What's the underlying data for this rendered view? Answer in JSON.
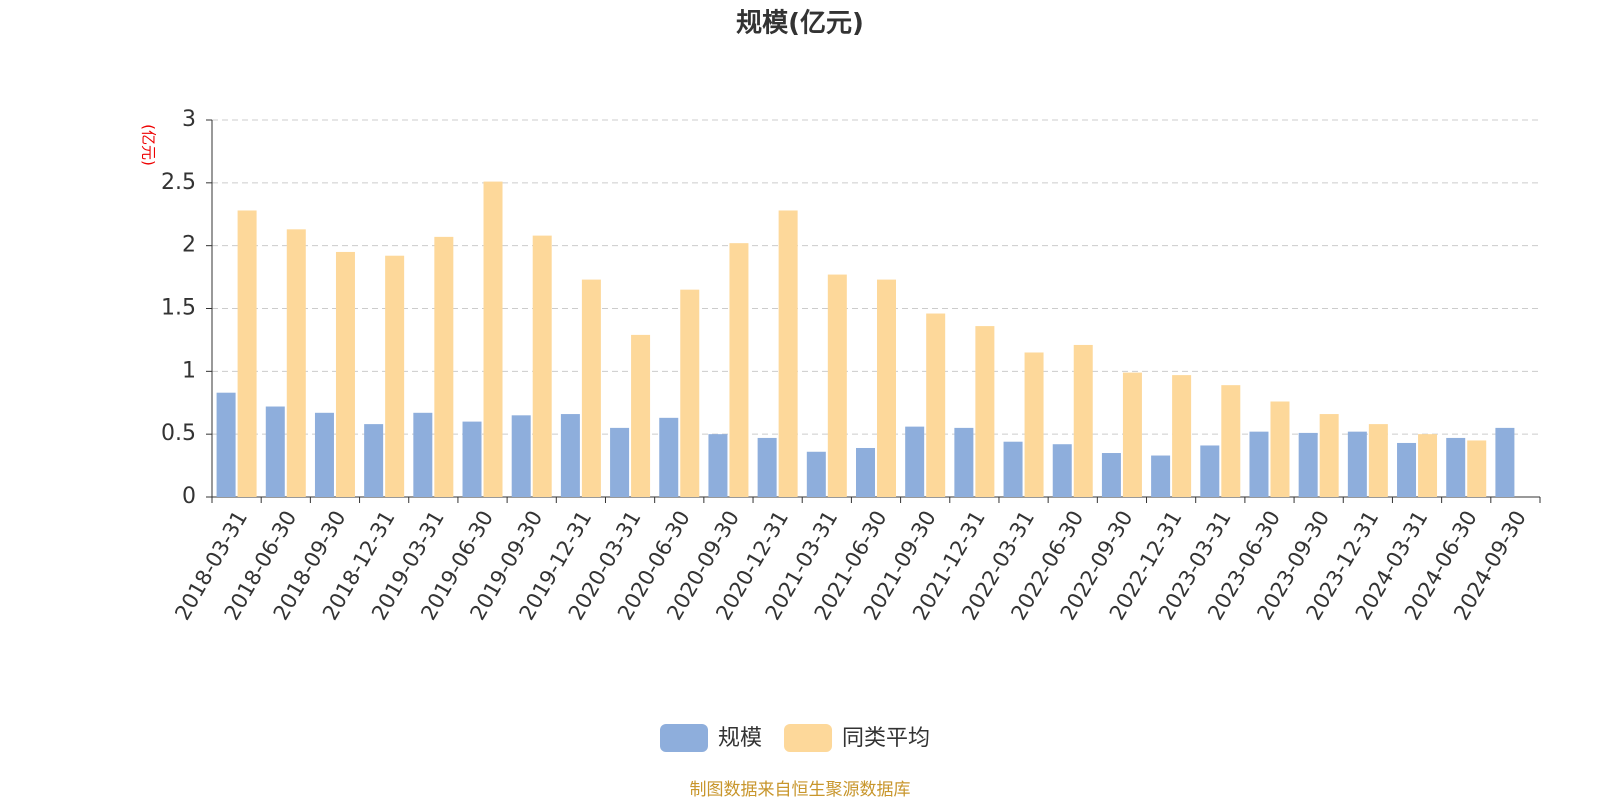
{
  "chart_data": {
    "type": "bar",
    "title": "规模(亿元)",
    "y_unit": "(亿元)",
    "categories": [
      "2018-03-31",
      "2018-06-30",
      "2018-09-30",
      "2018-12-31",
      "2019-03-31",
      "2019-06-30",
      "2019-09-30",
      "2019-12-31",
      "2020-03-31",
      "2020-06-30",
      "2020-09-30",
      "2020-12-31",
      "2021-03-31",
      "2021-06-30",
      "2021-09-30",
      "2021-12-31",
      "2022-03-31",
      "2022-06-30",
      "2022-09-30",
      "2022-12-31",
      "2023-03-31",
      "2023-06-30",
      "2023-09-30",
      "2023-12-31",
      "2024-03-31",
      "2024-06-30",
      "2024-09-30"
    ],
    "series": [
      {
        "name": "规模",
        "color": "#8eaedc",
        "values": [
          0.83,
          0.72,
          0.67,
          0.58,
          0.67,
          0.6,
          0.65,
          0.66,
          0.55,
          0.63,
          0.5,
          0.47,
          0.36,
          0.39,
          0.56,
          0.55,
          0.44,
          0.42,
          0.35,
          0.33,
          0.41,
          0.52,
          0.51,
          0.52,
          0.43,
          0.47,
          0.55
        ]
      },
      {
        "name": "同类平均",
        "color": "#fdd89a",
        "values": [
          2.28,
          2.13,
          1.95,
          1.92,
          2.07,
          2.51,
          2.08,
          1.73,
          1.29,
          1.65,
          2.02,
          2.28,
          1.77,
          1.73,
          1.46,
          1.36,
          1.15,
          1.21,
          0.99,
          0.97,
          0.89,
          0.76,
          0.66,
          0.58,
          0.5,
          0.45,
          null
        ]
      }
    ],
    "ylim": [
      0,
      3
    ],
    "yticks": [
      0,
      0.5,
      1,
      1.5,
      2,
      2.5,
      3
    ],
    "grid": true,
    "source": "制图数据来自恒生聚源数据库"
  }
}
